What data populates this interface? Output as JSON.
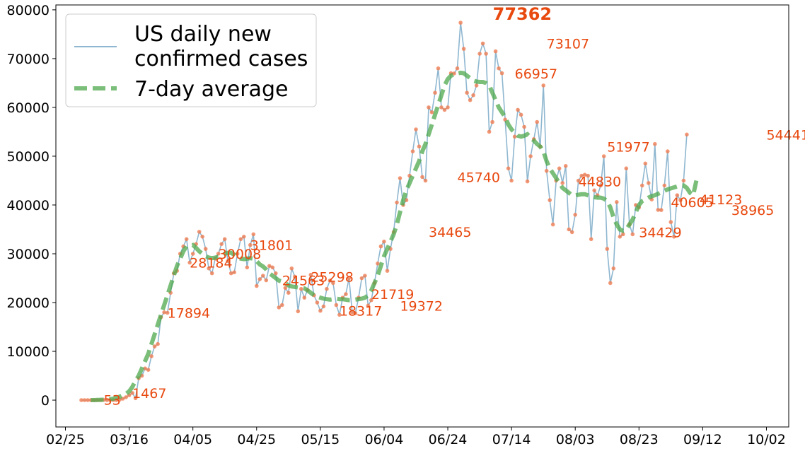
{
  "chart_data": {
    "type": "line",
    "x_ticks": [
      "02/25",
      "03/16",
      "04/05",
      "04/25",
      "05/15",
      "06/04",
      "06/24",
      "07/14",
      "08/03",
      "08/23",
      "09/12",
      "10/02"
    ],
    "y_ticks": [
      "0",
      "10000",
      "20000",
      "30000",
      "40000",
      "50000",
      "60000",
      "70000",
      "80000"
    ],
    "xlim": [
      "2020-02-22",
      "2020-10-09"
    ],
    "ylim": [
      -5500,
      81000
    ],
    "grid": false,
    "legend_position": "top-left",
    "series": [
      {
        "name": "US daily new confirmed cases",
        "style": "solid thin line with orange circle markers",
        "color": "#8fb7d0",
        "marker_color": "#f07d52",
        "start_date": "2020-03-01",
        "values": [
          0,
          0,
          0,
          0,
          0,
          0,
          0,
          53,
          0,
          0,
          0,
          0,
          100,
          300,
          600,
          1000,
          1467,
          400,
          4500,
          5000,
          6500,
          6200,
          9000,
          11000,
          11500,
          17000,
          18000,
          17894,
          22000,
          26000,
          26500,
          30000,
          31500,
          33000,
          28184,
          30000,
          32000,
          34500,
          33500,
          31000,
          27000,
          26000,
          29000,
          30008,
          32000,
          33000,
          28500,
          26000,
          26200,
          30000,
          33000,
          33500,
          27200,
          31801,
          34000,
          23400,
          24800,
          25500,
          24563,
          27500,
          27200,
          26000,
          19000,
          19500,
          23000,
          22000,
          27000,
          25298,
          18200,
          22800,
          21000,
          22600,
          25700,
          21500,
          20000,
          18317,
          19200,
          22800,
          24500,
          24000,
          19500,
          17500,
          21000,
          21719,
          25000,
          18000,
          17800,
          21000,
          25000,
          25500,
          19372,
          20500,
          24000,
          28000,
          31500,
          32500,
          26500,
          31000,
          34465,
          40500,
          45500,
          40000,
          41000,
          46000,
          51000,
          55500,
          52000,
          45740,
          45000,
          60000,
          59000,
          63000,
          68000,
          60000,
          59500,
          60000,
          67000,
          66957,
          68000,
          77362,
          72000,
          63000,
          61500,
          62500,
          64500,
          71000,
          73107,
          71000,
          55000,
          57000,
          71500,
          68000,
          67000,
          57500,
          47500,
          45000,
          54000,
          59500,
          58500,
          56000,
          44830,
          50000,
          53500,
          57000,
          51977,
          64500,
          47000,
          41000,
          36000,
          45000,
          47500,
          44500,
          48000,
          35000,
          34429,
          38000,
          45000,
          46000,
          46200,
          46000,
          33000,
          43000,
          42000,
          44000,
          50000,
          31000,
          24000,
          27000,
          40605,
          33500,
          34000,
          47500,
          36000,
          34000,
          40000,
          39500,
          44000,
          48500,
          44500,
          41123,
          52500,
          39000,
          38965,
          44000,
          51000,
          36500,
          33500,
          42000,
          41000,
          45000,
          54441
        ]
      },
      {
        "name": "7-day average",
        "style": "thick dashed line",
        "color": "#4ea84e",
        "start_date": "2020-03-04",
        "values": [
          0,
          0,
          30,
          60,
          100,
          150,
          200,
          300,
          500,
          700,
          1000,
          1300,
          1800,
          2700,
          4000,
          5000,
          6500,
          8000,
          9500,
          11500,
          13500,
          15500,
          17500,
          19500,
          21500,
          23500,
          25500,
          27500,
          29000,
          30500,
          31500,
          31700,
          31800,
          31200,
          30500,
          30000,
          29500,
          29200,
          29100,
          29200,
          29400,
          29700,
          30000,
          30200,
          30200,
          29800,
          29300,
          29000,
          28900,
          29000,
          29100,
          29000,
          28500,
          27800,
          27400,
          26800,
          26000,
          25500,
          25000,
          24500,
          24300,
          24000,
          23500,
          23300,
          23200,
          23100,
          23000,
          22900,
          22500,
          22000,
          21500,
          21200,
          21000,
          20800,
          20700,
          20600,
          20700,
          20800,
          20700,
          20700,
          20600,
          20500,
          20500,
          20600,
          20700,
          20800,
          21000,
          21500,
          22500,
          24000,
          25500,
          27500,
          29500,
          31000,
          32500,
          34000,
          36000,
          38500,
          41000,
          43000,
          44500,
          46000,
          47500,
          49000,
          51000,
          52500,
          54500,
          56500,
          58500,
          60500,
          62500,
          64500,
          65800,
          66500,
          66800,
          66957,
          67100,
          67000,
          66500,
          66000,
          65500,
          65300,
          65200,
          65200,
          65000,
          64500,
          63000,
          61500,
          60000,
          59000,
          58000,
          56500,
          55500,
          54800,
          54200,
          54000,
          54200,
          54500,
          53800,
          53200,
          52500,
          51977,
          51000,
          49000,
          47500,
          46500,
          45500,
          44500,
          43500,
          43000,
          42500,
          42000,
          42000,
          42100,
          42200,
          42200,
          42000,
          41800,
          41600,
          41500,
          41500,
          41300,
          40800,
          39500,
          37500,
          36000,
          35000,
          34700,
          35000,
          36000,
          37000,
          38500,
          40000,
          40800,
          41123,
          41500,
          41800,
          42000,
          42300,
          42600,
          42900,
          43200,
          43400,
          43600,
          43800,
          44000,
          44000,
          43500,
          42500,
          42000,
          45000
        ]
      }
    ],
    "annotations": [
      {
        "text": "53",
        "x": "2020-03-08",
        "y": 53
      },
      {
        "text": "1467",
        "x": "2020-03-17",
        "y": 1467
      },
      {
        "text": "17894",
        "x": "2020-03-28",
        "y": 17894
      },
      {
        "text": "28184",
        "x": "2020-04-04",
        "y": 28184
      },
      {
        "text": "30008",
        "x": "2020-04-13",
        "y": 30008
      },
      {
        "text": "31801",
        "x": "2020-04-23",
        "y": 31801
      },
      {
        "text": "24563",
        "x": "2020-05-03",
        "y": 24563
      },
      {
        "text": "25298",
        "x": "2020-05-12",
        "y": 25298
      },
      {
        "text": "18317",
        "x": "2020-05-21",
        "y": 18317
      },
      {
        "text": "21719",
        "x": "2020-05-31",
        "y": 21719
      },
      {
        "text": "19372",
        "x": "2020-06-09",
        "y": 19372
      },
      {
        "text": "34465",
        "x": "2020-06-18",
        "y": 34465
      },
      {
        "text": "45740",
        "x": "2020-06-27",
        "y": 45740
      },
      {
        "text": "77362",
        "x": "2020-07-17",
        "y": 77362,
        "peak": true
      },
      {
        "text": "66957",
        "x": "2020-07-15",
        "y": 66957
      },
      {
        "text": "73107",
        "x": "2020-07-25",
        "y": 73107
      },
      {
        "text": "44830",
        "x": "2020-08-04",
        "y": 44830
      },
      {
        "text": "51977",
        "x": "2020-08-13",
        "y": 51977
      },
      {
        "text": "34429",
        "x": "2020-08-23",
        "y": 34429
      },
      {
        "text": "40605",
        "x": "2020-09-02",
        "y": 40605
      },
      {
        "text": "41123",
        "x": "2020-09-11",
        "y": 41123
      },
      {
        "text": "38965",
        "x": "2020-09-21",
        "y": 38965
      },
      {
        "text": "54441",
        "x": "2020-10-02",
        "y": 54441
      }
    ],
    "legend": {
      "entries": [
        {
          "label_lines": [
            "US daily new",
            "confirmed cases"
          ],
          "series": 0
        },
        {
          "label_lines": [
            "7-day average"
          ],
          "series": 1
        }
      ]
    }
  }
}
